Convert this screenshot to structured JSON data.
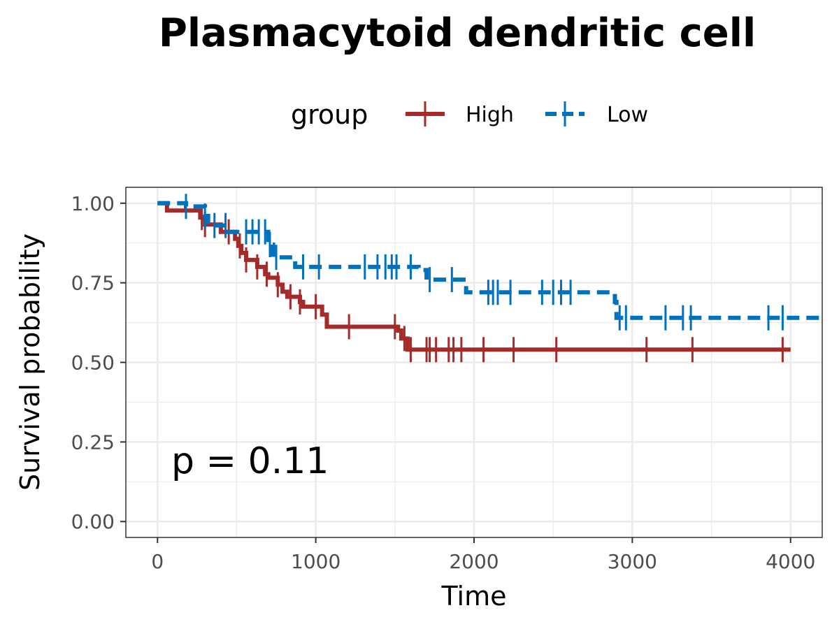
{
  "chart_data": {
    "type": "line",
    "subtype": "kaplan-meier",
    "title": "Plasmacytoid dendritic cell",
    "xlabel": "Time",
    "ylabel": "Survival probability",
    "xlim": [
      -200,
      4200
    ],
    "ylim": [
      -0.05,
      1.05
    ],
    "x_ticks": [
      0,
      1000,
      2000,
      3000,
      4000
    ],
    "x_tick_labels": [
      "0",
      "1000",
      "2000",
      "3000",
      "4000"
    ],
    "y_ticks": [
      0,
      0.25,
      0.5,
      0.75,
      1.0
    ],
    "y_tick_labels": [
      "0.00",
      "0.25",
      "0.50",
      "0.75",
      "1.00"
    ],
    "grid": true,
    "legend": {
      "title": "group",
      "position": "top",
      "entries": [
        "High",
        "Low"
      ]
    },
    "annotation": "p = 0.11",
    "series": [
      {
        "name": "High",
        "color": "#A52A2A",
        "line_style": "solid",
        "steps": [
          [
            0,
            1.0
          ],
          [
            60,
            0.977
          ],
          [
            270,
            0.955
          ],
          [
            300,
            0.933
          ],
          [
            400,
            0.91
          ],
          [
            490,
            0.888
          ],
          [
            510,
            0.866
          ],
          [
            530,
            0.844
          ],
          [
            560,
            0.822
          ],
          [
            630,
            0.8
          ],
          [
            680,
            0.777
          ],
          [
            700,
            0.766
          ],
          [
            760,
            0.744
          ],
          [
            790,
            0.722
          ],
          [
            820,
            0.706
          ],
          [
            900,
            0.69
          ],
          [
            920,
            0.675
          ],
          [
            1040,
            0.65
          ],
          [
            1070,
            0.612
          ],
          [
            1520,
            0.6
          ],
          [
            1540,
            0.575
          ],
          [
            1580,
            0.54
          ],
          [
            4000,
            0.54
          ]
        ],
        "censor_times": [
          280,
          300,
          450,
          520,
          560,
          630,
          690,
          760,
          840,
          900,
          1000,
          1210,
          1500,
          1560,
          1600,
          1700,
          1720,
          1760,
          1840,
          1870,
          1920,
          2060,
          2250,
          2520,
          3090,
          3380,
          3950
        ]
      },
      {
        "name": "Low",
        "color": "#0072BD",
        "line_style": "dashed",
        "steps": [
          [
            0,
            1.0
          ],
          [
            180,
            0.99
          ],
          [
            300,
            0.96
          ],
          [
            320,
            0.93
          ],
          [
            450,
            0.91
          ],
          [
            700,
            0.87
          ],
          [
            730,
            0.83
          ],
          [
            870,
            0.8
          ],
          [
            1650,
            0.79
          ],
          [
            1700,
            0.76
          ],
          [
            1950,
            0.72
          ],
          [
            2890,
            0.69
          ],
          [
            2900,
            0.64
          ],
          [
            4200,
            0.64
          ]
        ],
        "censor_times": [
          180,
          300,
          360,
          430,
          560,
          600,
          640,
          680,
          710,
          750,
          920,
          1020,
          1310,
          1390,
          1440,
          1480,
          1510,
          1600,
          1720,
          1860,
          2090,
          2120,
          2150,
          2230,
          2430,
          2500,
          2550,
          2610,
          2920,
          2960,
          3210,
          3320,
          3370,
          3860,
          3950
        ]
      }
    ]
  }
}
